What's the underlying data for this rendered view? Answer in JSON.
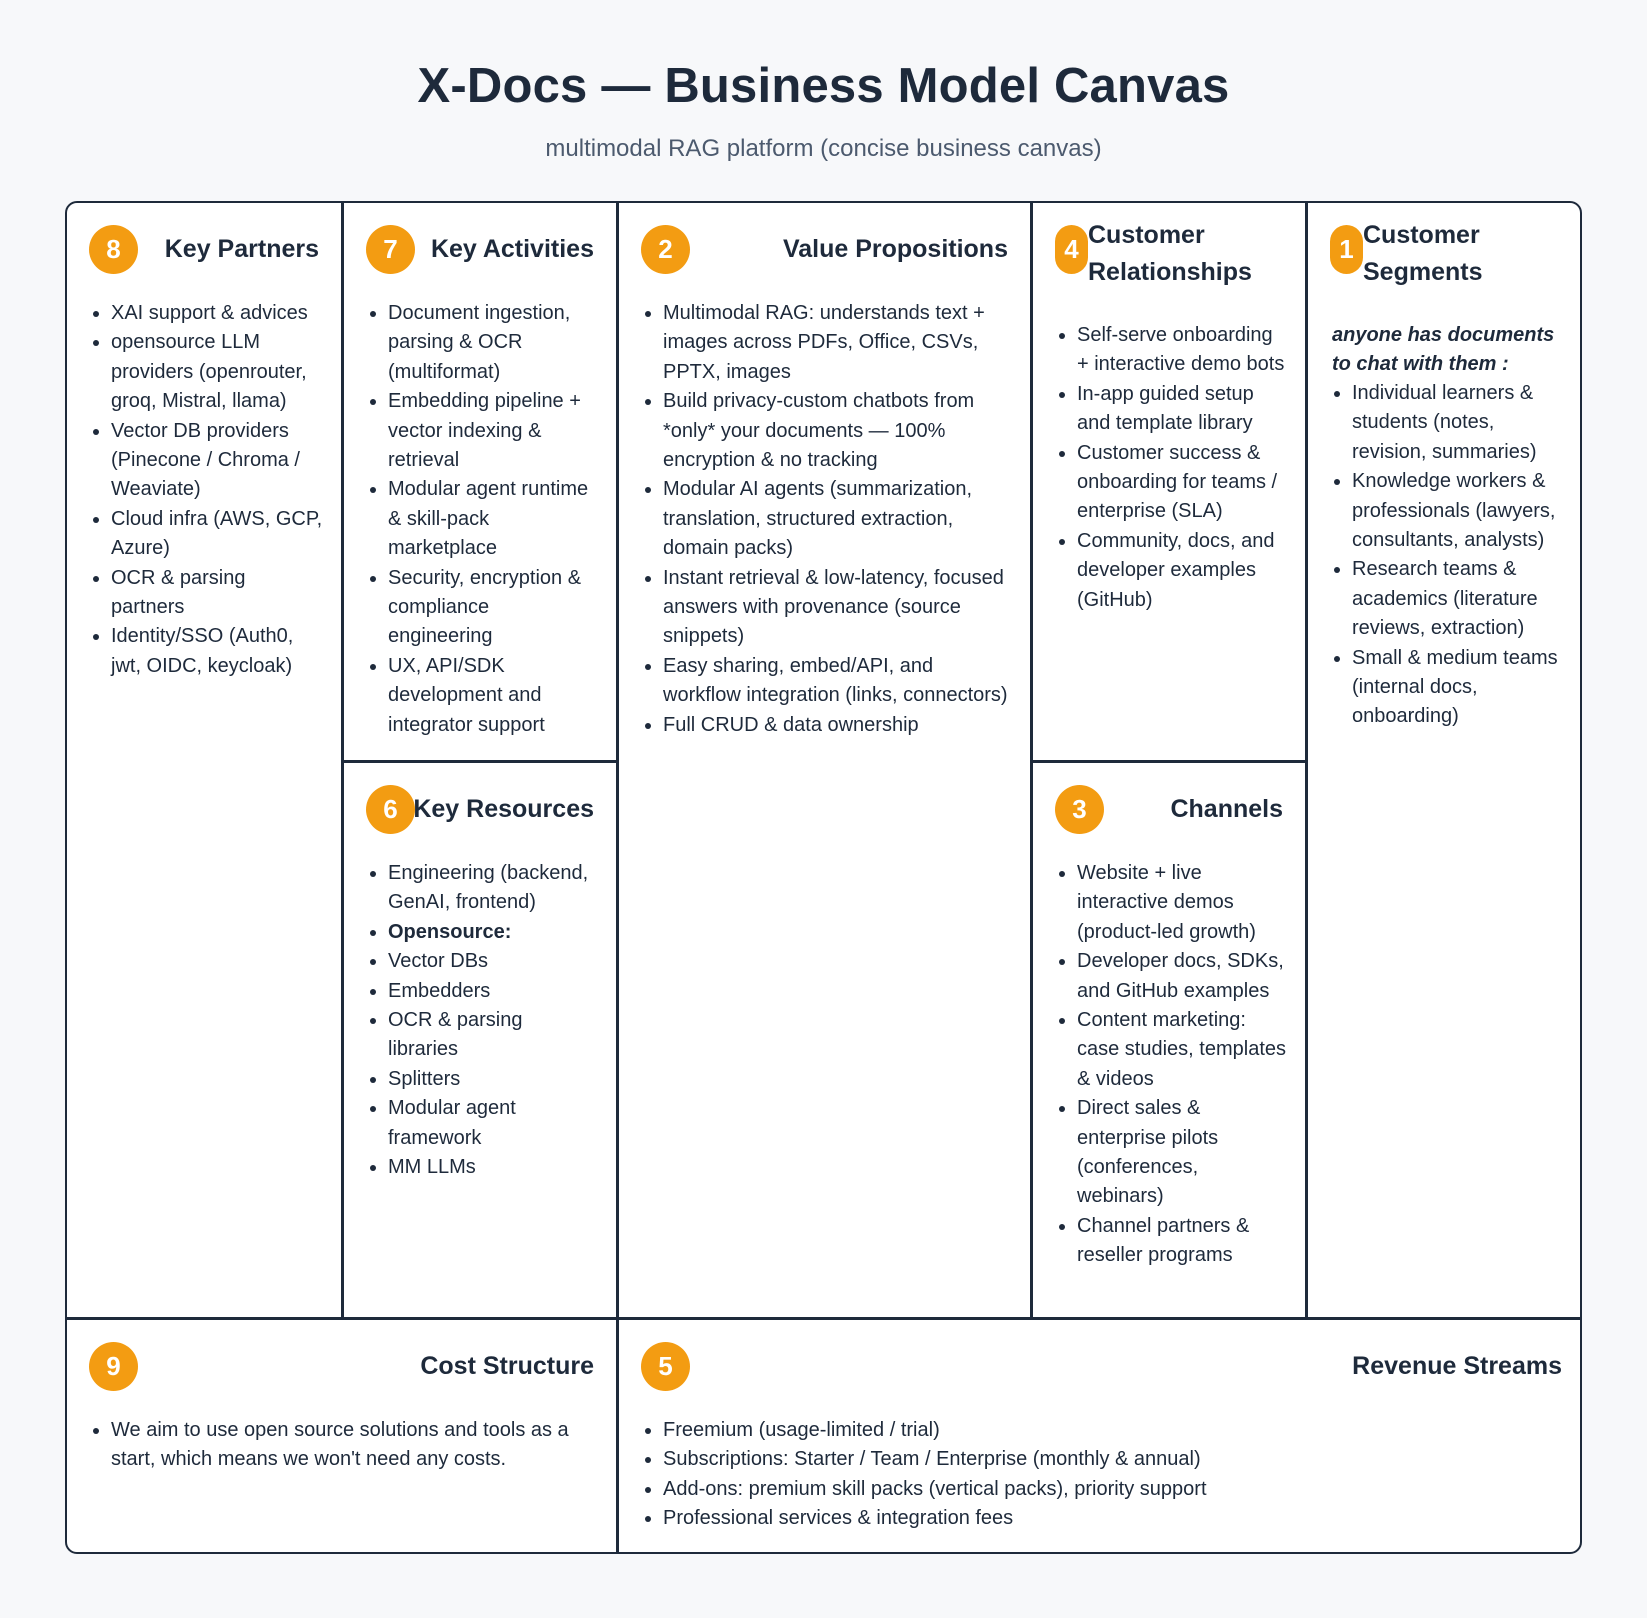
{
  "title": "X-Docs — Business Model Canvas",
  "subtitle": "multimodal RAG platform (concise business canvas)",
  "accent_color": "#f39c12",
  "blocks": {
    "key_partners": {
      "number": "8",
      "title": "Key Partners",
      "items": [
        "XAI support & advices",
        "opensource LLM providers (openrouter, groq, Mistral, llama)",
        "Vector DB providers (Pinecone / Chroma / Weaviate)",
        "Cloud infra (AWS, GCP, Azure)",
        "OCR & parsing partners",
        "Identity/SSO (Auth0, jwt, OIDC, keycloak)"
      ]
    },
    "key_activities": {
      "number": "7",
      "title": "Key Activities",
      "items": [
        "Document ingestion, parsing & OCR (multiformat)",
        "Embedding pipeline + vector indexing & retrieval",
        "Modular agent runtime & skill-pack marketplace",
        "Security, encryption & compliance engineering",
        "UX, API/SDK development and integrator support"
      ]
    },
    "key_resources": {
      "number": "6",
      "title": "Key Resources",
      "items": [
        "Engineering (backend, GenAI, frontend)",
        "Opensource:",
        "Vector DBs",
        "Embedders",
        "OCR & parsing libraries",
        "Splitters",
        "Modular agent framework",
        "MM LLMs"
      ]
    },
    "value_propositions": {
      "number": "2",
      "title": "Value Propositions",
      "items": [
        "Multimodal RAG: understands text + images across PDFs, Office, CSVs, PPTX, images",
        "Build privacy-custom chatbots from *only* your documents — 100% encryption & no tracking",
        "Modular AI agents (summarization, translation, structured extraction, domain packs)",
        "Instant retrieval & low-latency, focused answers with provenance (source snippets)",
        "Easy sharing, embed/API, and workflow integration (links, connectors)",
        "Full CRUD & data ownership"
      ]
    },
    "customer_relationships": {
      "number": "4",
      "title": "Customer Relationships",
      "items": [
        "Self-serve onboarding + interactive demo bots",
        "In-app guided setup and template library",
        "Customer success & onboarding for teams / enterprise (SLA)",
        "Community, docs, and developer examples (GitHub)"
      ]
    },
    "channels": {
      "number": "3",
      "title": "Channels",
      "items": [
        "Website + live interactive demos (product-led growth)",
        "Developer docs, SDKs, and GitHub examples",
        "Content marketing: case studies, templates & videos",
        "Direct sales & enterprise pilots (conferences, webinars)",
        "Channel partners & reseller programs"
      ]
    },
    "customer_segments": {
      "number": "1",
      "title": "Customer Segments",
      "lead": "anyone has documents to chat with them :",
      "items": [
        "Individual learners & students (notes, revision, summaries)",
        "Knowledge workers & professionals (lawyers, consultants, analysts)",
        "Research teams & academics (literature reviews, extraction)",
        "Small & medium teams (internal docs, onboarding)"
      ]
    },
    "cost_structure": {
      "number": "9",
      "title": "Cost Structure",
      "items": [
        "We aim to use open source solutions and tools as a start, which means we won't need any costs."
      ]
    },
    "revenue_streams": {
      "number": "5",
      "title": "Revenue Streams",
      "items": [
        "Freemium (usage-limited / trial)",
        "Subscriptions: Starter / Team / Enterprise (monthly & annual)",
        "Add-ons: premium skill packs (vertical packs), priority support",
        "Professional services & integration fees"
      ]
    }
  }
}
